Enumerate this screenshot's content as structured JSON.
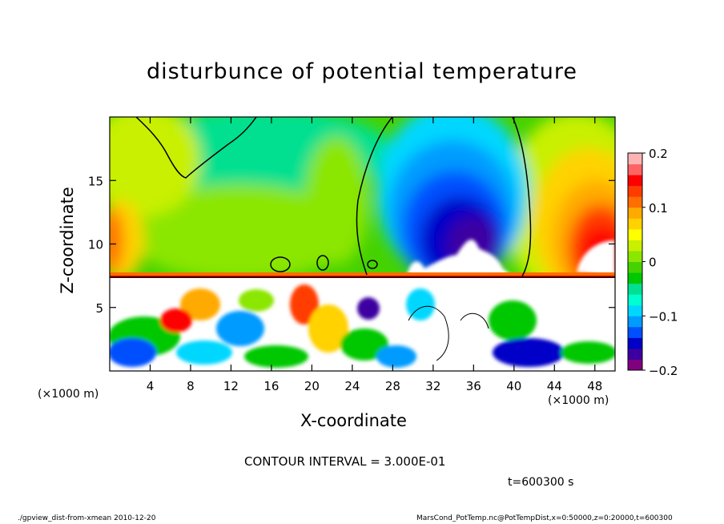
{
  "chart_data": {
    "type": "heatmap",
    "title": "disturbunce of potential temperature",
    "xlabel": "X-coordinate",
    "ylabel": "Z-coordinate",
    "x_unit_left": "(×1000 m)",
    "x_unit_right": "(×1000 m)",
    "xlim": [
      0,
      50
    ],
    "ylim": [
      0,
      20
    ],
    "x_ticks": [
      4,
      8,
      12,
      16,
      20,
      24,
      28,
      32,
      36,
      40,
      44,
      48
    ],
    "y_ticks": [
      5,
      10,
      15
    ],
    "colorbar": {
      "range": [
        -0.2,
        0.2
      ],
      "ticks": [
        0.2,
        0.1,
        0,
        -0.1,
        -0.2
      ],
      "tick_labels": [
        "0.2",
        "0.1",
        "0",
        "−0.1",
        "−0.2"
      ],
      "colors": [
        "#800080",
        "#3c00a0",
        "#0000c8",
        "#0050ff",
        "#009bff",
        "#00d7ff",
        "#00ffd0",
        "#00e090",
        "#00c800",
        "#46d200",
        "#8be600",
        "#c8f000",
        "#ffff00",
        "#ffd200",
        "#ffaa00",
        "#ff6e00",
        "#ff3c00",
        "#ff0000",
        "#ff6464",
        "#ffb4b4"
      ]
    },
    "contour_interval": "CONTOUR INTERVAL = 3.000E-01",
    "time_label": "t=600300 s"
  },
  "footer": {
    "left": "./gpview_dist-from-xmean  2010-12-20",
    "right": "MarsCond_PotTemp.nc@PotTempDist,x=0:50000,z=0:20000,t=600300"
  }
}
